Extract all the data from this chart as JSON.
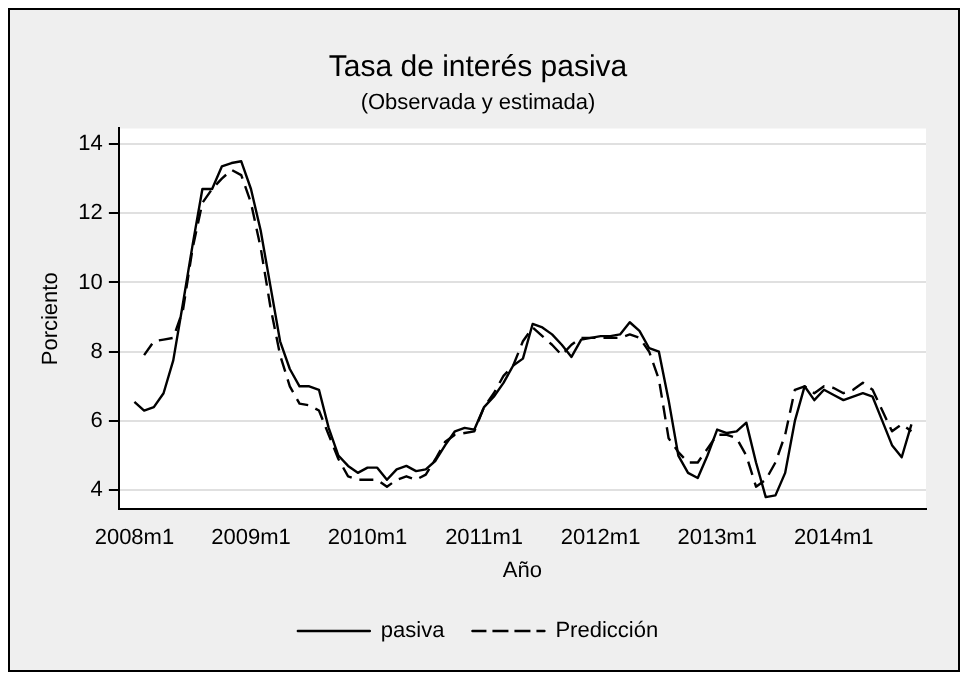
{
  "chart_data": {
    "type": "line",
    "title": "Tasa de interés pasiva",
    "subtitle": "(Observada y estimada)",
    "xlabel": "Año",
    "ylabel": "Porciento",
    "x": [
      "2008-01",
      "2008-02",
      "2008-03",
      "2008-04",
      "2008-05",
      "2008-06",
      "2008-07",
      "2008-08",
      "2008-09",
      "2008-10",
      "2008-11",
      "2008-12",
      "2009-01",
      "2009-02",
      "2009-03",
      "2009-04",
      "2009-05",
      "2009-06",
      "2009-07",
      "2009-08",
      "2009-09",
      "2009-10",
      "2009-11",
      "2009-12",
      "2010-01",
      "2010-02",
      "2010-03",
      "2010-04",
      "2010-05",
      "2010-06",
      "2010-07",
      "2010-08",
      "2010-09",
      "2010-10",
      "2010-11",
      "2010-12",
      "2011-01",
      "2011-02",
      "2011-03",
      "2011-04",
      "2011-05",
      "2011-06",
      "2011-07",
      "2011-08",
      "2011-09",
      "2011-10",
      "2011-11",
      "2011-12",
      "2012-01",
      "2012-02",
      "2012-03",
      "2012-04",
      "2012-05",
      "2012-06",
      "2012-07",
      "2012-08",
      "2012-09",
      "2012-10",
      "2012-11",
      "2012-12",
      "2013-01",
      "2013-02",
      "2013-03",
      "2013-04",
      "2013-05",
      "2013-06",
      "2013-07",
      "2013-08",
      "2013-09",
      "2013-10",
      "2013-11",
      "2013-12",
      "2014-01",
      "2014-02",
      "2014-03",
      "2014-04",
      "2014-05",
      "2014-06",
      "2014-07",
      "2014-08",
      "2014-09"
    ],
    "series": [
      {
        "name": "pasiva",
        "color": "#000000",
        "line_style": "solid",
        "values": [
          6.55,
          6.3,
          6.4,
          6.8,
          7.75,
          9.4,
          11.1,
          12.7,
          12.7,
          13.35,
          13.45,
          13.5,
          12.7,
          11.5,
          9.9,
          8.3,
          7.5,
          7.0,
          7.0,
          6.9,
          5.8,
          5.0,
          4.7,
          4.5,
          4.65,
          4.65,
          4.3,
          4.6,
          4.7,
          4.55,
          4.6,
          4.85,
          5.3,
          5.7,
          5.8,
          5.75,
          6.4,
          6.7,
          7.1,
          7.6,
          7.8,
          8.8,
          8.7,
          8.5,
          8.2,
          7.85,
          8.35,
          8.4,
          8.45,
          8.45,
          8.5,
          8.85,
          8.6,
          8.1,
          8.0,
          6.6,
          5.0,
          4.5,
          4.35,
          5.0,
          5.75,
          5.65,
          5.7,
          5.95,
          4.8,
          3.8,
          3.85,
          4.5,
          6.0,
          7.0,
          6.6,
          6.9,
          6.75,
          6.6,
          6.7,
          6.8,
          6.7,
          6.0,
          5.3,
          4.95,
          5.9
        ]
      },
      {
        "name": "Predicción",
        "color": "#000000",
        "line_style": "dashed",
        "values": [
          null,
          7.9,
          8.3,
          8.35,
          8.4,
          9.2,
          11.0,
          12.3,
          12.7,
          13.0,
          13.25,
          13.1,
          12.3,
          11.0,
          9.3,
          7.9,
          7.0,
          6.5,
          6.45,
          6.3,
          5.6,
          4.9,
          4.4,
          4.3,
          4.3,
          4.3,
          4.1,
          4.3,
          4.4,
          4.3,
          4.45,
          4.9,
          5.4,
          5.6,
          5.65,
          5.7,
          6.4,
          6.8,
          7.3,
          7.6,
          8.3,
          8.7,
          8.45,
          8.2,
          7.9,
          8.2,
          8.4,
          8.4,
          8.4,
          8.4,
          8.4,
          8.5,
          8.4,
          8.0,
          7.2,
          5.5,
          5.1,
          4.8,
          4.8,
          5.2,
          5.6,
          5.6,
          5.5,
          5.0,
          4.1,
          4.3,
          4.8,
          5.6,
          6.9,
          7.0,
          6.8,
          7.0,
          6.95,
          6.8,
          6.9,
          7.1,
          6.9,
          6.3,
          5.7,
          5.9,
          5.7
        ]
      }
    ],
    "xlim": [
      "2007-11-13",
      "2014-10-16"
    ],
    "xticks": [
      {
        "value": "2008-01",
        "label": "2008m1"
      },
      {
        "value": "2009-01",
        "label": "2009m1"
      },
      {
        "value": "2010-01",
        "label": "2010m1"
      },
      {
        "value": "2011-01",
        "label": "2011m1"
      },
      {
        "value": "2012-01",
        "label": "2012m1"
      },
      {
        "value": "2013-01",
        "label": "2013m1"
      },
      {
        "value": "2014-01",
        "label": "2014m1"
      }
    ],
    "ylim": [
      3.45,
      14.45
    ],
    "yticks": [
      4,
      6,
      8,
      10,
      12,
      14
    ],
    "grid": "y",
    "legend": "bottom",
    "marker": "none"
  }
}
